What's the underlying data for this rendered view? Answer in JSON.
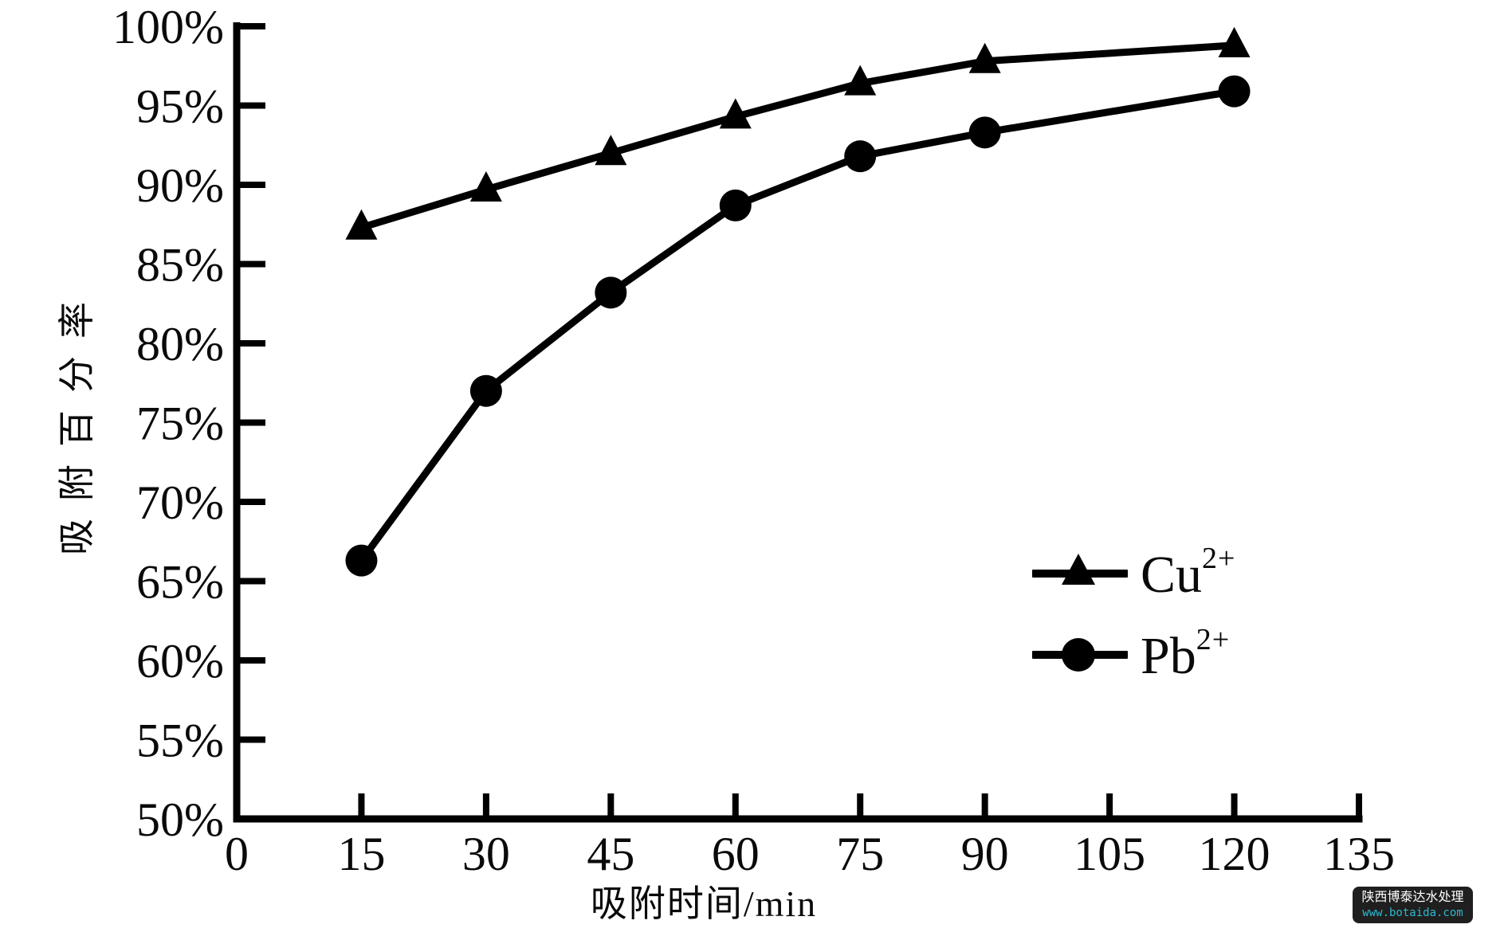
{
  "chart_data": {
    "type": "line",
    "title": "",
    "xlabel": "吸附时间/min",
    "ylabel": "吸附百分率",
    "xlim": [
      0,
      135
    ],
    "ylim": [
      50,
      100
    ],
    "grid": false,
    "legend_position": "right-center",
    "x_ticks": [
      "0",
      "15",
      "30",
      "45",
      "60",
      "75",
      "90",
      "105",
      "120",
      "135"
    ],
    "y_ticks": [
      "100%",
      "95%",
      "90%",
      "85%",
      "80%",
      "75%",
      "70%",
      "65%",
      "60%",
      "55%",
      "50%"
    ],
    "x": [
      15,
      30,
      45,
      60,
      75,
      90,
      120
    ],
    "series": [
      {
        "name": "Cu",
        "sup": "2+",
        "marker": "triangle",
        "color": "#000000",
        "values": [
          87.3,
          89.7,
          92.0,
          94.3,
          96.4,
          97.8,
          98.8
        ]
      },
      {
        "name": "Pb",
        "sup": "2+",
        "marker": "circle",
        "color": "#000000",
        "values": [
          66.3,
          77.0,
          83.2,
          88.7,
          91.8,
          93.3,
          95.9
        ]
      }
    ]
  },
  "watermark": {
    "company": "陕西博泰达水处理",
    "url": "www.botaida.com",
    "bg_color": "#1f1f1f",
    "company_color": "#ffffff",
    "url_color": "#2fb9cf"
  }
}
